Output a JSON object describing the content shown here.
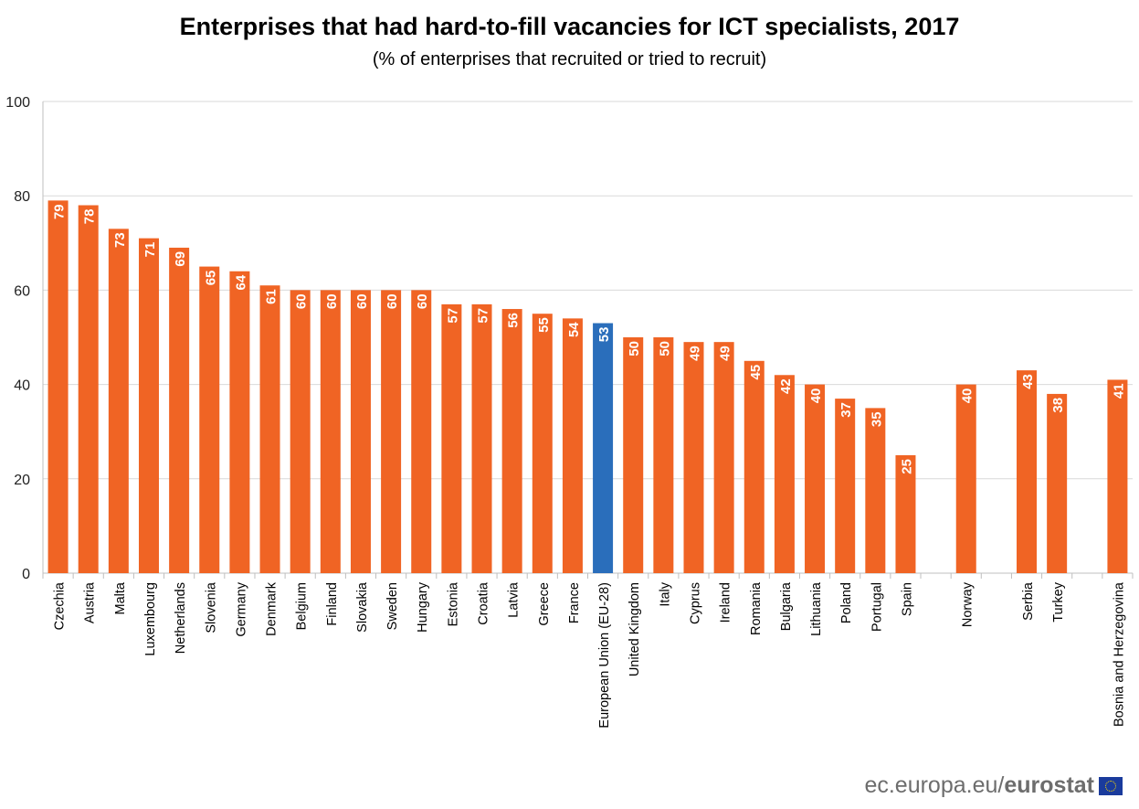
{
  "chart_data": {
    "type": "bar",
    "title": "Enterprises that had hard-to-fill vacancies for ICT specialists, 2017",
    "subtitle": "(% of enterprises that recruited or tried to recruit)",
    "xlabel": "",
    "ylabel": "",
    "ylim": [
      0,
      100
    ],
    "yticks": [
      0,
      20,
      40,
      60,
      80,
      100
    ],
    "grid": true,
    "categories": [
      "Czechia",
      "Austria",
      "Malta",
      "Luxembourg",
      "Netherlands",
      "Slovenia",
      "Germany",
      "Denmark",
      "Belgium",
      "Finland",
      "Slovakia",
      "Sweden",
      "Hungary",
      "Estonia",
      "Croatia",
      "Latvia",
      "Greece",
      "France",
      "European Union (EU-28)",
      "United Kingdom",
      "Italy",
      "Cyprus",
      "Ireland",
      "Romania",
      "Bulgaria",
      "Lithuania",
      "Poland",
      "Portugal",
      "Spain",
      "Norway",
      "Serbia",
      "Turkey",
      "Bosnia and Herzegovina"
    ],
    "values": [
      79,
      78,
      73,
      71,
      69,
      65,
      64,
      61,
      60,
      60,
      60,
      60,
      60,
      57,
      57,
      56,
      55,
      54,
      53,
      50,
      50,
      49,
      49,
      45,
      42,
      40,
      37,
      35,
      25,
      40,
      43,
      38,
      41
    ],
    "gap_before": [
      "Norway",
      "Serbia",
      "Bosnia and Herzegovina"
    ],
    "highlight": "European Union (EU-28)",
    "colors": {
      "bar": "#f06424",
      "highlight": "#2a6ebb",
      "grid": "#d9d9d9",
      "label": "#ffffff"
    }
  },
  "footer": {
    "site": "ec.europa.eu/",
    "brand": "eurostat"
  }
}
